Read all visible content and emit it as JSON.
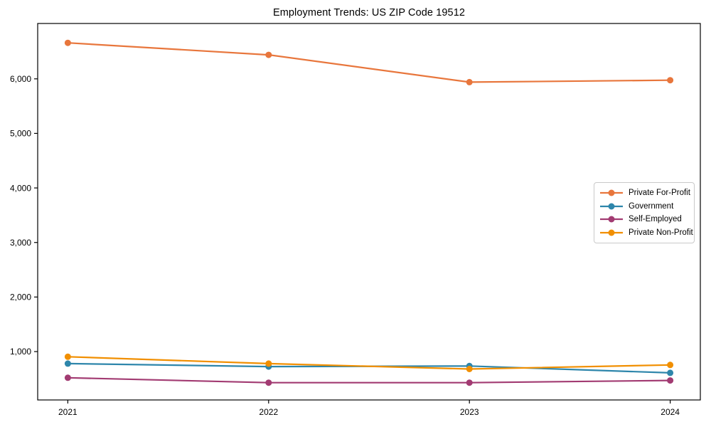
{
  "figure": {
    "background": "#ffffff"
  },
  "chart_data": {
    "type": "line",
    "title": "Employment Trends: US ZIP Code 19512",
    "xlabel": "",
    "ylabel": "",
    "x": [
      2021,
      2022,
      2023,
      2024
    ],
    "x_labels": [
      "2021",
      "2022",
      "2023",
      "2024"
    ],
    "series": [
      {
        "name": "Private For-Profit",
        "color": "#e8763c",
        "values": [
          6660,
          6440,
          5940,
          5975
        ]
      },
      {
        "name": "Government",
        "color": "#2e86ab",
        "values": [
          780,
          725,
          735,
          610
        ]
      },
      {
        "name": "Self-Employed",
        "color": "#a23b72",
        "values": [
          520,
          430,
          430,
          470
        ]
      },
      {
        "name": "Private Non-Profit",
        "color": "#f18f01",
        "values": [
          905,
          780,
          680,
          755
        ]
      }
    ],
    "yticks": [
      {
        "v": 1000,
        "label": "1,000"
      },
      {
        "v": 2000,
        "label": "2,000"
      },
      {
        "v": 3000,
        "label": "3,000"
      },
      {
        "v": 4000,
        "label": "4,000"
      },
      {
        "v": 5000,
        "label": "5,000"
      },
      {
        "v": 6000,
        "label": "6,000"
      }
    ],
    "xlim": [
      2020.85,
      2024.15
    ],
    "ylim": [
      113,
      7015
    ],
    "grid": false,
    "legend_position": "center right"
  }
}
